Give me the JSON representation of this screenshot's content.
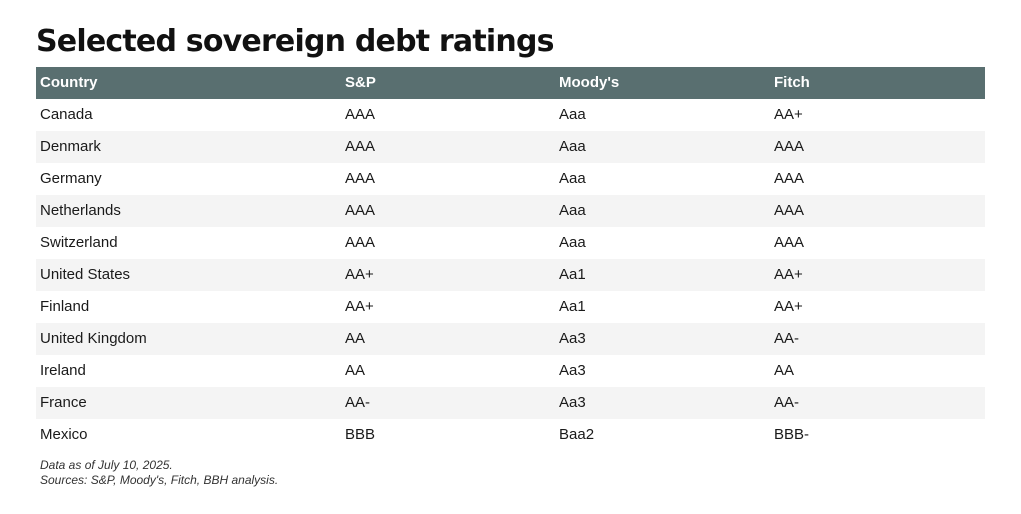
{
  "chart_data": {
    "type": "table",
    "title": "Selected sovereign debt ratings",
    "columns": [
      "Country",
      "S&P",
      "Moody's",
      "Fitch"
    ],
    "rows": [
      [
        "Canada",
        "AAA",
        "Aaa",
        "AA+"
      ],
      [
        "Denmark",
        "AAA",
        "Aaa",
        "AAA"
      ],
      [
        "Germany",
        "AAA",
        "Aaa",
        "AAA"
      ],
      [
        "Netherlands",
        "AAA",
        "Aaa",
        "AAA"
      ],
      [
        "Switzerland",
        "AAA",
        "Aaa",
        "AAA"
      ],
      [
        "United States",
        "AA+",
        "Aa1",
        "AA+"
      ],
      [
        "Finland",
        "AA+",
        "Aa1",
        "AA+"
      ],
      [
        "United Kingdom",
        "AA",
        "Aa3",
        "AA-"
      ],
      [
        "Ireland",
        "AA",
        "Aa3",
        "AA"
      ],
      [
        "France",
        "AA-",
        "Aa3",
        "AA-"
      ],
      [
        "Mexico",
        "BBB",
        "Baa2",
        "BBB-"
      ]
    ],
    "notes": [
      "Data as of July 10, 2025.",
      "Sources: S&P, Moody's, Fitch, BBH analysis."
    ]
  },
  "colors": {
    "header_background": "#596f70",
    "header_text": "#ffffff",
    "alternate_row": "#f4f4f4"
  }
}
